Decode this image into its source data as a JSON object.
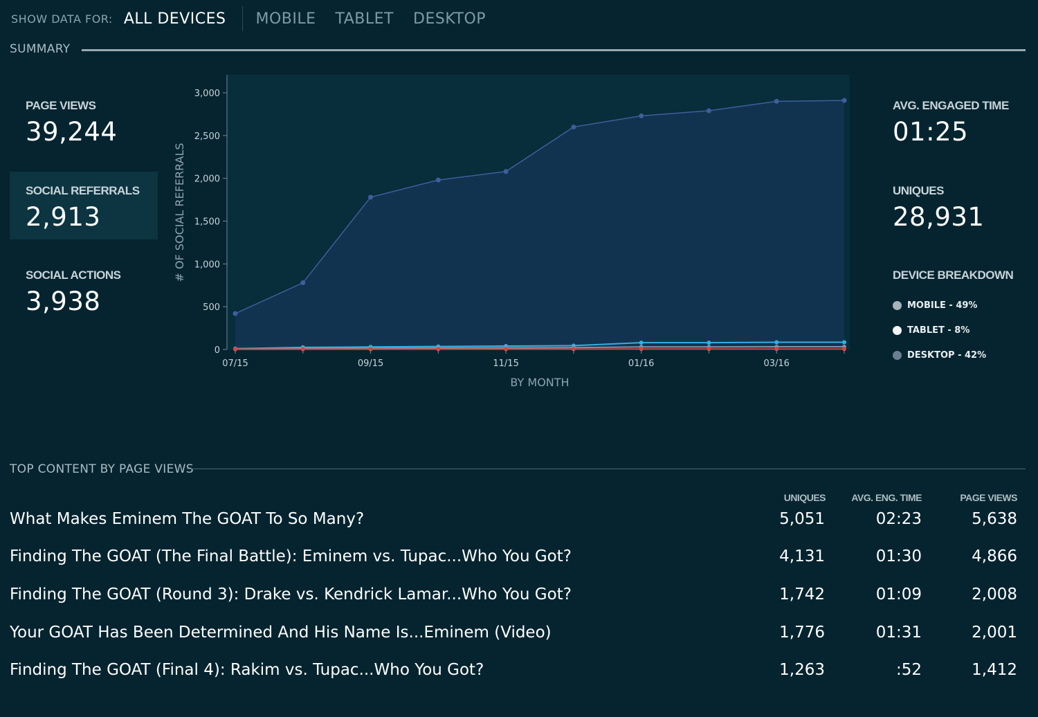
{
  "filter": {
    "label": "SHOW DATA FOR:",
    "tabs": [
      {
        "label": "ALL DEVICES",
        "active": true
      },
      {
        "label": "MOBILE",
        "active": false
      },
      {
        "label": "TABLET",
        "active": false
      },
      {
        "label": "DESKTOP",
        "active": false
      }
    ]
  },
  "summary": {
    "title": "SUMMARY",
    "page_views": {
      "label": "PAGE VIEWS",
      "value": "39,244"
    },
    "social_referrals": {
      "label": "SOCIAL REFERRALS",
      "value": "2,913"
    },
    "social_actions": {
      "label": "SOCIAL ACTIONS",
      "value": "3,938"
    },
    "avg_engaged_time": {
      "label": "AVG. ENGAGED TIME",
      "value": "01:25"
    },
    "uniques": {
      "label": "UNIQUES",
      "value": "28,931"
    },
    "device_breakdown": {
      "label": "DEVICE BREAKDOWN",
      "items": [
        {
          "label": "MOBILE - 49%",
          "color": "#a7b3bb"
        },
        {
          "label": "TABLET - 8%",
          "color": "#f2f4f5"
        },
        {
          "label": "DESKTOP - 42%",
          "color": "#6b7f93"
        }
      ]
    }
  },
  "chart_data": {
    "type": "area",
    "xlabel": "BY MONTH",
    "ylabel": "# OF SOCIAL REFERRALS",
    "ylim": [
      0,
      3000
    ],
    "yticks": [
      0,
      500,
      1000,
      1500,
      2000,
      2500,
      3000
    ],
    "ytick_labels": [
      "0",
      "500",
      "1,000",
      "1,500",
      "2,000",
      "2,500",
      "3,000"
    ],
    "x": [
      "07/15",
      "08/15",
      "09/15",
      "10/15",
      "11/15",
      "12/15",
      "01/16",
      "02/16",
      "03/16",
      "04/16"
    ],
    "xtick_labels": [
      "07/15",
      "",
      "09/15",
      "",
      "11/15",
      "",
      "01/16",
      "",
      "03/16",
      ""
    ],
    "grid": false,
    "series": [
      {
        "values": [
          420,
          780,
          1780,
          1980,
          2080,
          2600,
          2730,
          2790,
          2900,
          2910
        ],
        "color": "#3d5f9a"
      },
      {
        "values": [
          10,
          25,
          30,
          35,
          40,
          45,
          80,
          80,
          85,
          85
        ],
        "color": "#33b0e6"
      },
      {
        "values": [
          8,
          12,
          15,
          18,
          20,
          22,
          30,
          30,
          32,
          32
        ],
        "color": "#7f93a6"
      },
      {
        "values": [
          2,
          3,
          3,
          4,
          4,
          4,
          5,
          5,
          5,
          5
        ],
        "color": "#d9413a"
      }
    ]
  },
  "top_content": {
    "title": "TOP CONTENT BY PAGE VIEWS",
    "columns": {
      "uniques": "UNIQUES",
      "avg_time": "AVG. ENG. TIME",
      "page_views": "PAGE VIEWS"
    },
    "rows": [
      {
        "title": "What Makes Eminem The GOAT To So Many?",
        "uniques": "5,051",
        "avg_time": "02:23",
        "page_views": "5,638"
      },
      {
        "title": "Finding The GOAT (The Final Battle): Eminem vs. Tupac...Who You Got?",
        "uniques": "4,131",
        "avg_time": "01:30",
        "page_views": "4,866"
      },
      {
        "title": "Finding The GOAT (Round 3): Drake vs. Kendrick Lamar...Who You Got?",
        "uniques": "1,742",
        "avg_time": "01:09",
        "page_views": "2,008"
      },
      {
        "title": "Your GOAT Has Been Determined And His Name Is...Eminem (Video)",
        "uniques": "1,776",
        "avg_time": "01:31",
        "page_views": "2,001"
      },
      {
        "title": "Finding The GOAT (Final 4): Rakim vs. Tupac...Who You Got?",
        "uniques": "1,263",
        "avg_time": ":52",
        "page_views": "1,412"
      }
    ]
  }
}
